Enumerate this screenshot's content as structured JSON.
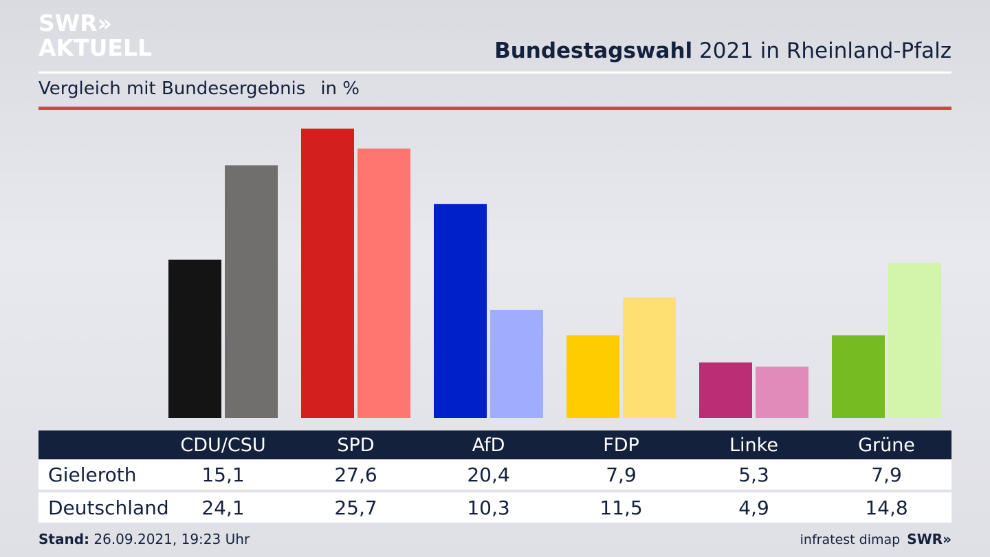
{
  "brand": {
    "logo_line1": "SWR»",
    "logo_line2": "AKTUELL"
  },
  "header": {
    "title_bold": "Bundestagswahl",
    "title_rest": " 2021 in Rheinland-Pfalz"
  },
  "subtitle": {
    "text": "Vergleich mit Bundesergebnis",
    "unit": "in %"
  },
  "chart_data": {
    "type": "bar",
    "categories": [
      "CDU/CSU",
      "SPD",
      "AfD",
      "FDP",
      "Linke",
      "Grüne"
    ],
    "series": [
      {
        "name": "Gieleroth",
        "values": [
          15.1,
          27.6,
          20.4,
          7.9,
          5.3,
          7.9
        ],
        "colors": [
          "#141414",
          "#d41f1f",
          "#0020c9",
          "#ffcc00",
          "#bb2e76",
          "#76bb21"
        ]
      },
      {
        "name": "Deutschland",
        "values": [
          24.1,
          25.7,
          10.3,
          11.5,
          4.9,
          14.8
        ],
        "colors": [
          "#706f6d",
          "#ff7670",
          "#9fadff",
          "#fde071",
          "#e08bb9",
          "#d3f5a9"
        ]
      }
    ],
    "ylim": [
      0,
      27.6
    ]
  },
  "table": {
    "rows": [
      {
        "label": "Gieleroth",
        "values": [
          "15,1",
          "27,6",
          "20,4",
          "7,9",
          "5,3",
          "7,9"
        ]
      },
      {
        "label": "Deutschland",
        "values": [
          "24,1",
          "25,7",
          "10,3",
          "11,5",
          "4,9",
          "14,8"
        ]
      }
    ]
  },
  "footer": {
    "stand_label": "Stand:",
    "stand_value": " 26.09.2021, 19:23 Uhr",
    "source": "infratest dimap",
    "brand": "SWR»"
  },
  "colors": {
    "navy": "#14213d",
    "accent_red": "#d04a38"
  }
}
